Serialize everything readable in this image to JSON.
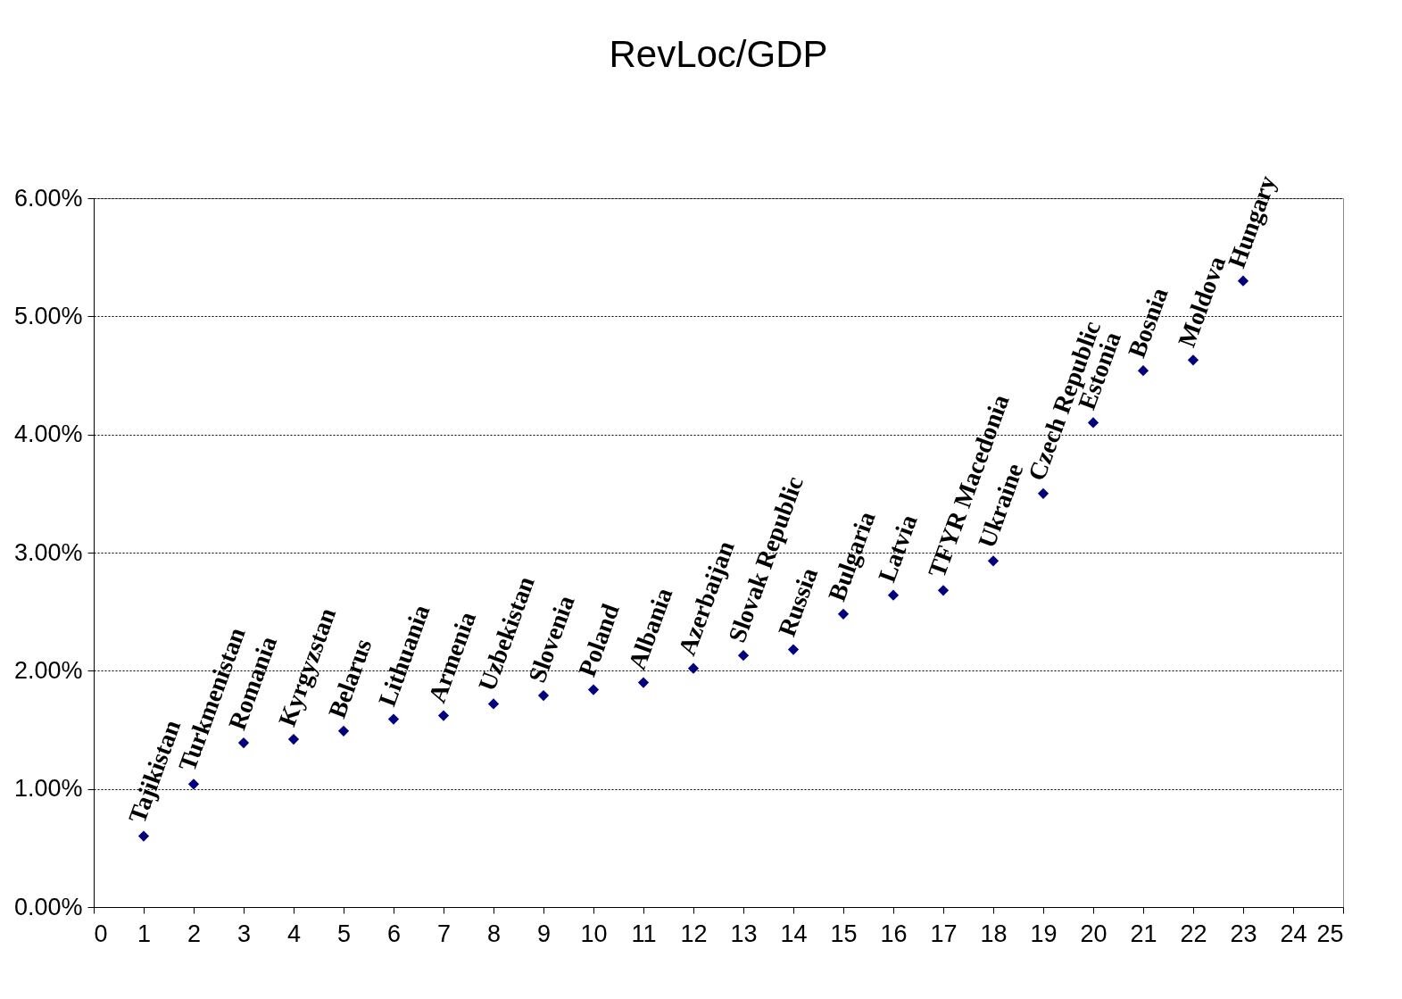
{
  "chart_data": {
    "type": "scatter",
    "title": "RevLoc/GDP",
    "x": [
      1,
      2,
      3,
      4,
      5,
      6,
      7,
      8,
      9,
      10,
      11,
      12,
      13,
      14,
      15,
      16,
      17,
      18,
      19,
      20,
      21,
      22,
      23
    ],
    "series": [
      {
        "color": "#000080",
        "values": [
          0.6,
          1.04,
          1.39,
          1.42,
          1.49,
          1.59,
          1.62,
          1.72,
          1.79,
          1.84,
          1.9,
          2.02,
          2.13,
          2.18,
          2.48,
          2.64,
          2.68,
          2.93,
          3.5,
          4.1,
          4.54,
          4.63,
          5.3
        ]
      }
    ],
    "annotations": [
      {
        "text": "Tajikistan",
        "x": 1,
        "y": 0.6
      },
      {
        "text": "Turkmenistan",
        "x": 2,
        "y": 1.04
      },
      {
        "text": "Romania",
        "x": 3,
        "y": 1.39
      },
      {
        "text": "Kyrgyzstan",
        "x": 4,
        "y": 1.42
      },
      {
        "text": "Belarus",
        "x": 5,
        "y": 1.49
      },
      {
        "text": "Lithuania",
        "x": 6,
        "y": 1.59
      },
      {
        "text": "Armenia",
        "x": 7,
        "y": 1.62
      },
      {
        "text": "Uzbekistan",
        "x": 8,
        "y": 1.72
      },
      {
        "text": "Slovenia",
        "x": 9,
        "y": 1.79
      },
      {
        "text": "Poland",
        "x": 10,
        "y": 1.84
      },
      {
        "text": "Albania",
        "x": 11,
        "y": 1.9
      },
      {
        "text": "Azerbaijan",
        "x": 12,
        "y": 2.02
      },
      {
        "text": "Slovak Republic",
        "x": 13,
        "y": 2.13
      },
      {
        "text": "Russia",
        "x": 14,
        "y": 2.18
      },
      {
        "text": "Bulgaria",
        "x": 15,
        "y": 2.48
      },
      {
        "text": "Latvia",
        "x": 16,
        "y": 2.64
      },
      {
        "text": "TFYR Macedonia",
        "x": 17,
        "y": 2.68
      },
      {
        "text": "Ukraine",
        "x": 18,
        "y": 2.93
      },
      {
        "text": "Czech Republic",
        "x": 19,
        "y": 3.5
      },
      {
        "text": "Estonia",
        "x": 20,
        "y": 4.1
      },
      {
        "text": "Bosnia",
        "x": 21,
        "y": 4.54
      },
      {
        "text": "Moldova",
        "x": 22,
        "y": 4.63
      },
      {
        "text": "Hungary",
        "x": 23,
        "y": 5.3
      }
    ],
    "xlim": [
      0,
      25
    ],
    "xticks": [
      0,
      1,
      2,
      3,
      4,
      5,
      6,
      7,
      8,
      9,
      10,
      11,
      12,
      13,
      14,
      15,
      16,
      17,
      18,
      19,
      20,
      21,
      22,
      23,
      24,
      25
    ],
    "ylim": [
      0,
      6
    ],
    "yticks": [
      {
        "value": 0,
        "label": "0.00%"
      },
      {
        "value": 1,
        "label": "1.00%"
      },
      {
        "value": 2,
        "label": "2.00%"
      },
      {
        "value": 3,
        "label": "3.00%"
      },
      {
        "value": 4,
        "label": "4.00%"
      },
      {
        "value": 5,
        "label": "5.00%"
      },
      {
        "value": 6,
        "label": "6.00%"
      }
    ],
    "grid": "y",
    "marker": "diamond"
  }
}
